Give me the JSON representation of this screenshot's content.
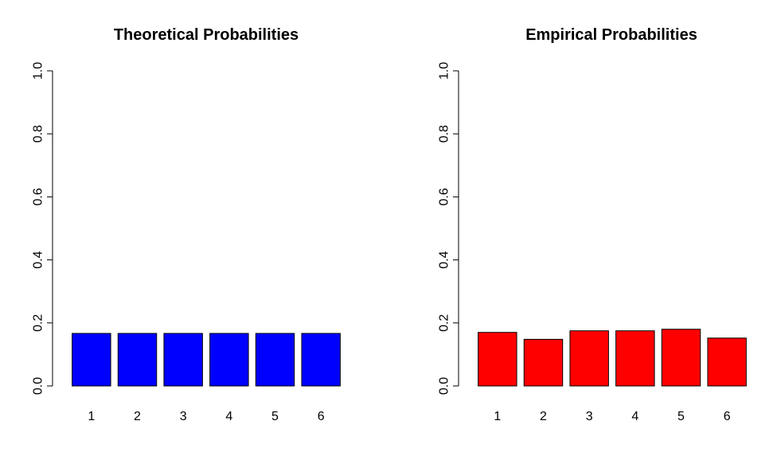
{
  "chart_data": [
    {
      "type": "bar",
      "title": "Theoretical Probabilities",
      "categories": [
        "1",
        "2",
        "3",
        "4",
        "5",
        "6"
      ],
      "values": [
        0.1667,
        0.1667,
        0.1667,
        0.1667,
        0.1667,
        0.1667
      ],
      "ylim": [
        0,
        1
      ],
      "yticks": [
        "0.0",
        "0.2",
        "0.4",
        "0.6",
        "0.8",
        "1.0"
      ],
      "color": "#0000ff",
      "grid": false
    },
    {
      "type": "bar",
      "title": "Empirical Probabilities",
      "categories": [
        "1",
        "2",
        "3",
        "4",
        "5",
        "6"
      ],
      "values": [
        0.17,
        0.148,
        0.175,
        0.175,
        0.18,
        0.152
      ],
      "ylim": [
        0,
        1
      ],
      "yticks": [
        "0.0",
        "0.2",
        "0.4",
        "0.6",
        "0.8",
        "1.0"
      ],
      "color": "#ff0000",
      "grid": false
    }
  ]
}
